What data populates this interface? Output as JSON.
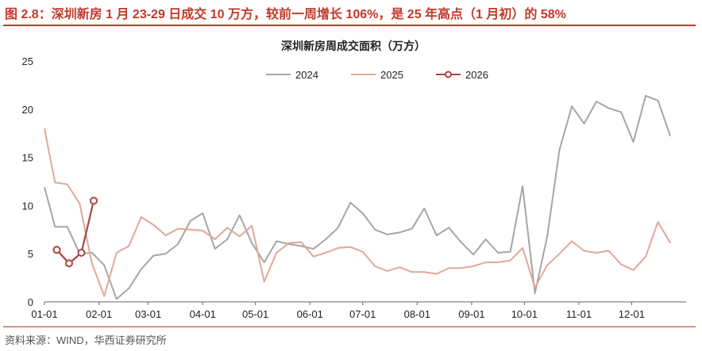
{
  "figure_title": "图 2.8：深圳新房 1 月 23-29 日成交 10 万方，较前一周增长 106%，是 25 年高点（1 月初）的 58%",
  "source": "资料来源：WIND，华西证券研究所",
  "colors": {
    "accent": "#c0392b",
    "series_2024": "#a6a6a6",
    "series_2025": "#e0a898",
    "series_2026": "#a8473d"
  },
  "chart_data": {
    "type": "line",
    "title": "深圳新房周成交面积（万方）",
    "xlabel": "",
    "ylabel": "",
    "x_ticks": [
      "01-01",
      "02-01",
      "03-01",
      "04-01",
      "05-01",
      "06-01",
      "07-01",
      "08-01",
      "09-01",
      "10-01",
      "11-01",
      "12-01"
    ],
    "ylim": [
      0,
      25
    ],
    "y_ticks": [
      0,
      5,
      10,
      15,
      20,
      25
    ],
    "legend_position": "top",
    "grid": false,
    "series": [
      {
        "name": "2024",
        "x": [
          1,
          7,
          14,
          21,
          28,
          35,
          42,
          49,
          56,
          63,
          70,
          77,
          84,
          91,
          98,
          105,
          112,
          119,
          126,
          133,
          140,
          147,
          154,
          161,
          168,
          175,
          182,
          189,
          196,
          203,
          210,
          217,
          224,
          231,
          238,
          245,
          252,
          259,
          266,
          273,
          280,
          287,
          294,
          301,
          308,
          315,
          322,
          329,
          336,
          343,
          350,
          357
        ],
        "values": [
          11.9,
          7.8,
          7.8,
          5.0,
          5.1,
          3.8,
          0.3,
          1.4,
          3.4,
          4.8,
          5.0,
          6.0,
          8.4,
          9.2,
          5.5,
          6.5,
          9.0,
          6.1,
          4.1,
          6.3,
          6.0,
          5.8,
          5.5,
          6.5,
          7.7,
          10.3,
          9.2,
          7.5,
          7.0,
          7.2,
          7.6,
          9.7,
          6.9,
          7.7,
          6.2,
          4.9,
          6.5,
          5.1,
          5.2,
          12.0,
          0.9,
          6.8,
          15.8,
          20.3,
          18.5,
          20.8,
          20.1,
          19.7,
          16.6,
          21.4,
          20.9,
          17.2
        ]
      },
      {
        "name": "2025",
        "x": [
          1,
          7,
          14,
          21,
          28,
          35,
          42,
          49,
          56,
          63,
          70,
          77,
          84,
          91,
          98,
          105,
          112,
          119,
          126,
          133,
          140,
          147,
          154,
          161,
          168,
          175,
          182,
          189,
          196,
          203,
          210,
          217,
          224,
          231,
          238,
          245,
          252,
          259,
          266,
          273,
          280,
          287,
          294,
          301,
          308,
          315,
          322,
          329,
          336,
          343,
          350,
          357
        ],
        "values": [
          18.0,
          12.4,
          12.2,
          10.2,
          4.0,
          0.6,
          5.1,
          5.8,
          8.8,
          8.0,
          6.9,
          7.6,
          7.5,
          7.4,
          6.5,
          7.7,
          6.8,
          7.9,
          2.1,
          5.1,
          6.1,
          6.2,
          4.7,
          5.1,
          5.6,
          5.7,
          5.2,
          3.7,
          3.2,
          3.6,
          3.1,
          3.1,
          2.9,
          3.5,
          3.5,
          3.7,
          4.1,
          4.1,
          4.3,
          5.6,
          1.5,
          3.8,
          5.0,
          6.3,
          5.3,
          5.1,
          5.3,
          3.9,
          3.3,
          4.7,
          8.3,
          6.1
        ]
      },
      {
        "name": "2026",
        "x": [
          8,
          15,
          22,
          29
        ],
        "values": [
          5.4,
          4.0,
          5.1,
          10.5
        ]
      }
    ]
  }
}
